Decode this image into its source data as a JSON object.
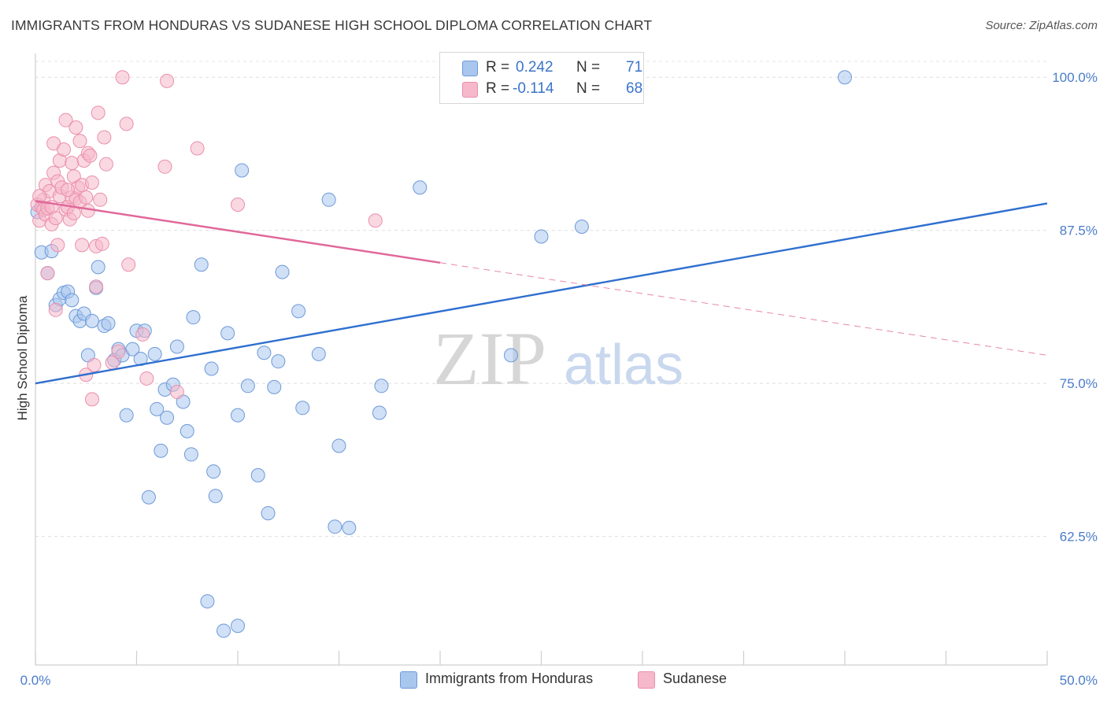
{
  "header": {
    "title": "IMMIGRANTS FROM HONDURAS VS SUDANESE HIGH SCHOOL DIPLOMA CORRELATION CHART",
    "source": "Source: ZipAtlas.com"
  },
  "watermark": {
    "zip": "ZIP",
    "atlas": "atlas"
  },
  "legend": {
    "rows": [
      {
        "r_label": "R =",
        "r_value": "0.242",
        "n_label": "N =",
        "n_value": "71",
        "color": "#a9c6ee"
      },
      {
        "r_label": "R =",
        "r_value": "-0.114",
        "n_label": "N =",
        "n_value": "68",
        "color": "#f6b8cb"
      }
    ]
  },
  "bottom_legend": [
    {
      "label": "Immigrants from Honduras",
      "color": "#a9c6ee"
    },
    {
      "label": "Sudanese",
      "color": "#f6b8cb"
    }
  ],
  "chart_data": {
    "type": "scatter",
    "title": "IMMIGRANTS FROM HONDURAS VS SUDANESE HIGH SCHOOL DIPLOMA CORRELATION CHART",
    "xlabel": "",
    "ylabel": "High School Diploma",
    "xlim": [
      0,
      50
    ],
    "ylim": [
      52,
      101.3
    ],
    "x_tick_labels": [
      "0.0%",
      "50.0%"
    ],
    "y_ticks": [
      62.5,
      75.0,
      87.5,
      100.0
    ],
    "y_tick_labels": [
      "62.5%",
      "75.0%",
      "87.5%",
      "100.0%"
    ],
    "grid": true,
    "legend_position": "top-center",
    "series": [
      {
        "name": "Immigrants from Honduras",
        "color": "#a9c6ee",
        "stroke": "#6d9ad8",
        "trend": {
          "x": [
            0,
            50
          ],
          "y": [
            75.0,
            89.7
          ],
          "color": "#2f6fcf",
          "dashed_from": null
        },
        "points": [
          [
            0.3,
            85.7
          ],
          [
            0.6,
            84.0
          ],
          [
            0.8,
            85.8
          ],
          [
            1.0,
            81.4
          ],
          [
            1.2,
            81.9
          ],
          [
            1.4,
            82.4
          ],
          [
            1.6,
            82.5
          ],
          [
            1.8,
            81.8
          ],
          [
            2.0,
            80.5
          ],
          [
            2.2,
            80.1
          ],
          [
            2.4,
            80.7
          ],
          [
            2.6,
            77.3
          ],
          [
            2.8,
            80.1
          ],
          [
            3.0,
            82.8
          ],
          [
            3.1,
            84.5
          ],
          [
            3.4,
            79.7
          ],
          [
            3.6,
            79.9
          ],
          [
            3.9,
            76.9
          ],
          [
            4.1,
            77.8
          ],
          [
            4.3,
            77.3
          ],
          [
            4.5,
            72.4
          ],
          [
            4.8,
            77.8
          ],
          [
            5.0,
            79.3
          ],
          [
            5.2,
            77.0
          ],
          [
            5.4,
            79.3
          ],
          [
            5.6,
            65.7
          ],
          [
            5.9,
            77.4
          ],
          [
            6.0,
            72.9
          ],
          [
            6.2,
            69.5
          ],
          [
            6.4,
            74.5
          ],
          [
            6.5,
            72.2
          ],
          [
            6.8,
            74.9
          ],
          [
            7.0,
            78.0
          ],
          [
            7.3,
            73.5
          ],
          [
            7.5,
            71.1
          ],
          [
            7.7,
            69.2
          ],
          [
            7.8,
            80.4
          ],
          [
            8.2,
            84.7
          ],
          [
            8.5,
            57.2
          ],
          [
            8.7,
            76.2
          ],
          [
            8.8,
            67.8
          ],
          [
            8.9,
            65.8
          ],
          [
            9.3,
            54.8
          ],
          [
            9.5,
            79.1
          ],
          [
            10.0,
            55.2
          ],
          [
            10.0,
            72.4
          ],
          [
            10.2,
            92.4
          ],
          [
            10.5,
            74.8
          ],
          [
            11.0,
            67.5
          ],
          [
            11.3,
            77.5
          ],
          [
            11.5,
            64.4
          ],
          [
            11.8,
            74.7
          ],
          [
            12.0,
            76.8
          ],
          [
            12.2,
            84.1
          ],
          [
            13.0,
            80.9
          ],
          [
            13.2,
            73.0
          ],
          [
            14.0,
            77.4
          ],
          [
            14.5,
            90.0
          ],
          [
            14.8,
            63.3
          ],
          [
            15.0,
            69.9
          ],
          [
            15.5,
            63.2
          ],
          [
            17.0,
            72.6
          ],
          [
            17.1,
            74.8
          ],
          [
            19.0,
            91.0
          ],
          [
            23.5,
            77.3
          ],
          [
            24.8,
            100.2
          ],
          [
            25.0,
            87.0
          ],
          [
            27.0,
            87.8
          ],
          [
            28.0,
            100.0
          ],
          [
            40.0,
            100.0
          ],
          [
            0.1,
            89.0
          ]
        ]
      },
      {
        "name": "Sudanese",
        "color": "#f6b8cb",
        "stroke": "#ea8fab",
        "trend": {
          "x": [
            0,
            50
          ],
          "y": [
            89.9,
            77.3
          ],
          "color": "#e0689a",
          "dashed_from": 20
        },
        "points": [
          [
            0.1,
            89.6
          ],
          [
            0.2,
            88.3
          ],
          [
            0.3,
            89.4
          ],
          [
            0.4,
            90.0
          ],
          [
            0.4,
            89.2
          ],
          [
            0.5,
            91.2
          ],
          [
            0.5,
            88.8
          ],
          [
            0.6,
            89.3
          ],
          [
            0.6,
            84.0
          ],
          [
            0.7,
            90.7
          ],
          [
            0.8,
            88.0
          ],
          [
            0.8,
            89.4
          ],
          [
            0.9,
            94.6
          ],
          [
            0.9,
            92.2
          ],
          [
            1.0,
            88.5
          ],
          [
            1.0,
            81.0
          ],
          [
            1.1,
            86.3
          ],
          [
            1.1,
            91.5
          ],
          [
            1.2,
            93.2
          ],
          [
            1.2,
            90.3
          ],
          [
            1.3,
            91.0
          ],
          [
            1.4,
            94.1
          ],
          [
            1.5,
            96.5
          ],
          [
            1.5,
            89.2
          ],
          [
            1.6,
            89.4
          ],
          [
            1.7,
            88.4
          ],
          [
            1.8,
            90.2
          ],
          [
            1.8,
            93.0
          ],
          [
            1.9,
            91.9
          ],
          [
            2.0,
            95.9
          ],
          [
            2.0,
            90.1
          ],
          [
            2.1,
            91.0
          ],
          [
            2.2,
            94.8
          ],
          [
            2.2,
            89.8
          ],
          [
            2.3,
            86.3
          ],
          [
            2.3,
            91.2
          ],
          [
            2.4,
            93.2
          ],
          [
            2.5,
            90.2
          ],
          [
            2.5,
            75.7
          ],
          [
            2.6,
            93.8
          ],
          [
            2.7,
            93.6
          ],
          [
            2.8,
            91.4
          ],
          [
            2.8,
            73.7
          ],
          [
            2.9,
            76.5
          ],
          [
            3.0,
            82.9
          ],
          [
            3.0,
            86.2
          ],
          [
            3.1,
            97.1
          ],
          [
            3.2,
            90.0
          ],
          [
            3.3,
            86.4
          ],
          [
            3.4,
            95.1
          ],
          [
            3.5,
            92.9
          ],
          [
            3.8,
            76.7
          ],
          [
            4.1,
            77.6
          ],
          [
            4.3,
            100.0
          ],
          [
            4.5,
            96.2
          ],
          [
            4.6,
            84.7
          ],
          [
            5.3,
            79.0
          ],
          [
            5.5,
            75.4
          ],
          [
            6.4,
            92.7
          ],
          [
            6.5,
            99.7
          ],
          [
            7.0,
            74.3
          ],
          [
            8.0,
            94.2
          ],
          [
            10.0,
            89.6
          ],
          [
            16.8,
            88.3
          ],
          [
            0.2,
            90.3
          ],
          [
            1.6,
            90.8
          ],
          [
            1.9,
            88.9
          ],
          [
            2.6,
            89.1
          ]
        ]
      }
    ]
  }
}
